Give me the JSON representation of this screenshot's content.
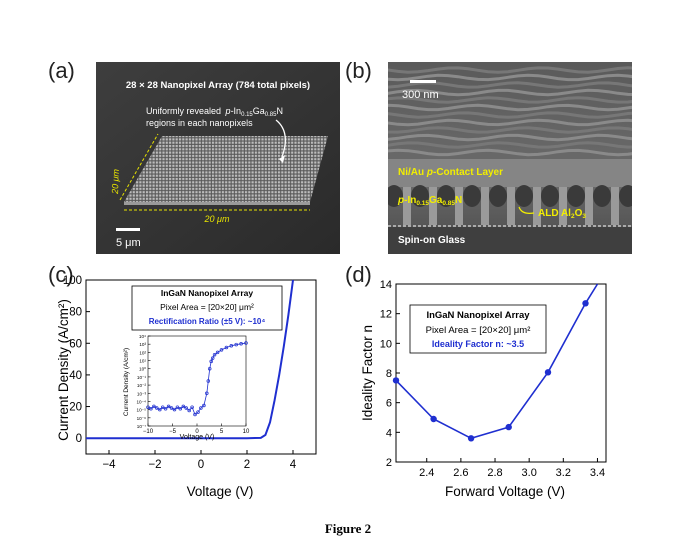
{
  "figure_caption": "Figure 2",
  "panel_a": {
    "label": "(a)",
    "title": "28 × 28 Nanopixel Array (784 total pixels)",
    "annotation_line1": "Uniformly revealed",
    "annotation_p": "p",
    "annotation_in": "-In",
    "annotation_in_sub": "0.15",
    "annotation_ga": "Ga",
    "annotation_ga_sub": "0.85",
    "annotation_n": "N",
    "annotation_line2": "regions in each nanopixels",
    "side_dim": "20 μm",
    "bottom_dim": "20 μm",
    "scale_bar": "5 μm"
  },
  "panel_b": {
    "label": "(b)",
    "scale_bar": "300 nm",
    "contact_layer_p": "Ni/Au ",
    "contact_layer_i": "p",
    "contact_layer_rest": "-Contact Layer",
    "ingan_p": "p",
    "ingan_in": "-In",
    "ingan_in_sub": "0.15",
    "ingan_ga": "Ga",
    "ingan_ga_sub": "0.85",
    "ingan_n": "N",
    "ald_main": "ALD Al",
    "ald_sub1": "2",
    "ald_o": "O",
    "ald_sub2": "3",
    "glass": "Spin-on Glass"
  },
  "panel_c": {
    "label": "(c)",
    "legend_title": "InGaN Nanopixel Array",
    "legend_area": "Pixel Area = [20×20] μm²",
    "legend_ratio": "Rectification Ratio (±5 V): ~10⁴",
    "inset_xlabel": "Voltage (V)",
    "inset_ylabel": "Current Density (A/cm²)"
  },
  "panel_d": {
    "label": "(d)",
    "legend_title": "InGaN Nanopixel Array",
    "legend_area": "Pixel Area = [20×20] μm²",
    "legend_ideality": "Ideality Factor n: ~3.5"
  },
  "chart_data": [
    {
      "id": "c",
      "type": "line",
      "xlabel": "Voltage (V)",
      "ylabel": "Current Density (A/cm²)",
      "xlim": [
        -5,
        5
      ],
      "ylim": [
        -10,
        100
      ],
      "xticks": [
        -4,
        -2,
        0,
        2,
        4
      ],
      "yticks": [
        0,
        20,
        40,
        60,
        80,
        100
      ],
      "series": [
        {
          "name": "J-V",
          "color": "#1f2fd0",
          "x": [
            -5,
            -4,
            -3,
            -2,
            -1,
            0,
            1,
            2,
            2.6,
            2.8,
            3.0,
            3.2,
            3.4,
            3.6,
            3.8,
            4.0
          ],
          "y": [
            0,
            0,
            0,
            0,
            0,
            0,
            0,
            0,
            0.2,
            2,
            10,
            24,
            40,
            58,
            78,
            100
          ]
        }
      ]
    },
    {
      "id": "c-inset",
      "type": "scatter",
      "xlabel": "Voltage (V)",
      "ylabel": "Current Density (A/cm²)",
      "xlim": [
        -10,
        10
      ],
      "ylim_log10": [
        -7,
        4
      ],
      "xticks": [
        -10,
        -5,
        0,
        5,
        10
      ],
      "ytick_labels": [
        "10⁻⁷",
        "10⁻⁶",
        "10⁻⁵",
        "10⁻⁴",
        "10⁻³",
        "10⁻²",
        "10⁻¹",
        "10⁰",
        "10¹",
        "10²",
        "10³",
        "10⁴"
      ],
      "series": [
        {
          "name": "log J-V",
          "color": "#1f2fd0",
          "x": [
            -10,
            -9.4,
            -8.8,
            -8.2,
            -7.6,
            -7.0,
            -6.4,
            -5.8,
            -5.2,
            -4.6,
            -4.0,
            -3.4,
            -2.8,
            -2.2,
            -1.6,
            -1.0,
            -0.4,
            0.2,
            0.8,
            1.4,
            2.0,
            2.3,
            2.6,
            2.9,
            3.2,
            3.6,
            4.2,
            5.0,
            6.0,
            7.0,
            8.0,
            9.0,
            10.0
          ],
          "y_log10": [
            -4.7,
            -4.9,
            -4.6,
            -4.8,
            -5.0,
            -4.7,
            -4.9,
            -4.6,
            -4.8,
            -5.0,
            -4.7,
            -4.9,
            -4.6,
            -4.8,
            -5.1,
            -4.7,
            -5.6,
            -5.3,
            -4.8,
            -4.5,
            -3.0,
            -1.5,
            0.0,
            0.9,
            1.3,
            1.7,
            2.0,
            2.3,
            2.6,
            2.8,
            2.95,
            3.05,
            3.15
          ]
        }
      ]
    },
    {
      "id": "d",
      "type": "line",
      "xlabel": "Forward Voltage (V)",
      "ylabel": "Ideality Factor n",
      "xlim": [
        2.22,
        3.45
      ],
      "ylim": [
        2,
        14
      ],
      "xticks": [
        2.4,
        2.6,
        2.8,
        3.0,
        3.2,
        3.4
      ],
      "yticks": [
        2,
        4,
        6,
        8,
        10,
        12,
        14
      ],
      "series": [
        {
          "name": "ideality",
          "color": "#1f2fd0",
          "x": [
            2.22,
            2.44,
            2.66,
            2.88,
            3.11,
            3.33,
            3.4
          ],
          "y": [
            7.5,
            4.9,
            3.6,
            4.35,
            8.05,
            12.7,
            14.0
          ],
          "markers": [
            true,
            true,
            true,
            true,
            true,
            true,
            false
          ]
        }
      ]
    }
  ]
}
